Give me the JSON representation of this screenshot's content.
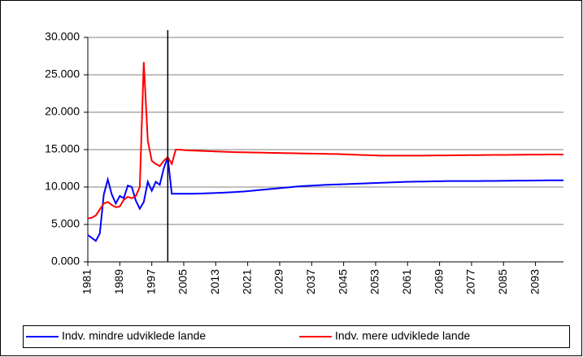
{
  "chart_data": {
    "type": "line",
    "x": [
      1981,
      1982,
      1983,
      1984,
      1985,
      1986,
      1987,
      1988,
      1989,
      1990,
      1991,
      1992,
      1993,
      1994,
      1995,
      1996,
      1997,
      1998,
      1999,
      2000,
      2001,
      2002,
      2003,
      2004,
      2005,
      2006,
      2007,
      2008,
      2009,
      2010,
      2011,
      2012,
      2013,
      2014,
      2015,
      2016,
      2017,
      2018,
      2019,
      2020,
      2021,
      2022,
      2023,
      2024,
      2025,
      2026,
      2027,
      2028,
      2029,
      2030,
      2031,
      2032,
      2033,
      2034,
      2035,
      2036,
      2037,
      2038,
      2039,
      2040,
      2041,
      2042,
      2043,
      2044,
      2045,
      2046,
      2047,
      2048,
      2049,
      2050,
      2051,
      2052,
      2053,
      2054,
      2055,
      2056,
      2057,
      2058,
      2059,
      2060,
      2061,
      2062,
      2063,
      2064,
      2065,
      2066,
      2067,
      2068,
      2069,
      2070,
      2071,
      2072,
      2073,
      2074,
      2075,
      2076,
      2077,
      2078,
      2079,
      2080,
      2081,
      2082,
      2083,
      2084,
      2085,
      2086,
      2087,
      2088,
      2089,
      2090,
      2091,
      2092,
      2093,
      2094,
      2095,
      2096,
      2097,
      2098,
      2099,
      2100
    ],
    "series": [
      {
        "name": "Indv. mindre udviklede lande",
        "color": "#0000ff",
        "values": [
          3600,
          3200,
          2800,
          3800,
          9000,
          11000,
          9000,
          7800,
          8800,
          8500,
          10200,
          10000,
          8200,
          7100,
          8000,
          10700,
          9500,
          10700,
          10300,
          12500,
          14000,
          9100,
          9100,
          9100,
          9100,
          9100,
          9110,
          9120,
          9130,
          9150,
          9170,
          9190,
          9210,
          9230,
          9250,
          9280,
          9310,
          9340,
          9370,
          9400,
          9450,
          9500,
          9550,
          9600,
          9650,
          9700,
          9750,
          9800,
          9850,
          9900,
          9950,
          10000,
          10050,
          10100,
          10130,
          10160,
          10190,
          10220,
          10250,
          10280,
          10300,
          10320,
          10340,
          10360,
          10380,
          10400,
          10420,
          10440,
          10460,
          10480,
          10500,
          10520,
          10540,
          10560,
          10580,
          10600,
          10620,
          10640,
          10660,
          10680,
          10700,
          10710,
          10720,
          10730,
          10740,
          10750,
          10760,
          10770,
          10780,
          10790,
          10800,
          10800,
          10800,
          10800,
          10800,
          10800,
          10800,
          10800,
          10800,
          10810,
          10810,
          10820,
          10820,
          10830,
          10830,
          10840,
          10840,
          10850,
          10850,
          10860,
          10860,
          10870,
          10870,
          10880,
          10880,
          10890,
          10890,
          10900,
          10900,
          10900
        ]
      },
      {
        "name": "Indv. mere udviklede lande",
        "color": "#ff0000",
        "values": [
          5800,
          5900,
          6200,
          7000,
          7800,
          8000,
          7600,
          7300,
          7400,
          8300,
          8700,
          8500,
          8800,
          10000,
          26700,
          16200,
          13500,
          13100,
          12800,
          13500,
          14000,
          13100,
          15000,
          15000,
          14950,
          14900,
          14880,
          14860,
          14840,
          14820,
          14800,
          14780,
          14760,
          14740,
          14720,
          14700,
          14680,
          14660,
          14650,
          14640,
          14630,
          14620,
          14610,
          14600,
          14590,
          14580,
          14570,
          14560,
          14550,
          14540,
          14530,
          14520,
          14510,
          14500,
          14490,
          14480,
          14470,
          14460,
          14450,
          14440,
          14430,
          14420,
          14410,
          14400,
          14380,
          14360,
          14340,
          14320,
          14300,
          14280,
          14260,
          14240,
          14220,
          14200,
          14200,
          14200,
          14200,
          14200,
          14200,
          14200,
          14200,
          14200,
          14200,
          14200,
          14200,
          14210,
          14210,
          14220,
          14220,
          14230,
          14230,
          14240,
          14240,
          14250,
          14250,
          14260,
          14260,
          14270,
          14270,
          14280,
          14280,
          14290,
          14290,
          14300,
          14300,
          14300,
          14310,
          14310,
          14320,
          14320,
          14330,
          14330,
          14330,
          14340,
          14340,
          14350,
          14350,
          14350,
          14350,
          14350
        ]
      }
    ],
    "xlim": [
      1981,
      2100
    ],
    "xticks": [
      1981,
      1989,
      1997,
      2005,
      2013,
      2021,
      2029,
      2037,
      2045,
      2053,
      2061,
      2069,
      2077,
      2085,
      2093
    ],
    "ylim": [
      0,
      30000
    ],
    "yticks": [
      {
        "value": 0,
        "label": "0.000"
      },
      {
        "value": 5000,
        "label": "5.000"
      },
      {
        "value": 10000,
        "label": "10.000"
      },
      {
        "value": 15000,
        "label": "15.000"
      },
      {
        "value": 20000,
        "label": "20.000"
      },
      {
        "value": 25000,
        "label": "25.000"
      },
      {
        "value": 30000,
        "label": "30.000"
      }
    ],
    "vline": 2001,
    "grid": true,
    "legend": "bottom"
  }
}
